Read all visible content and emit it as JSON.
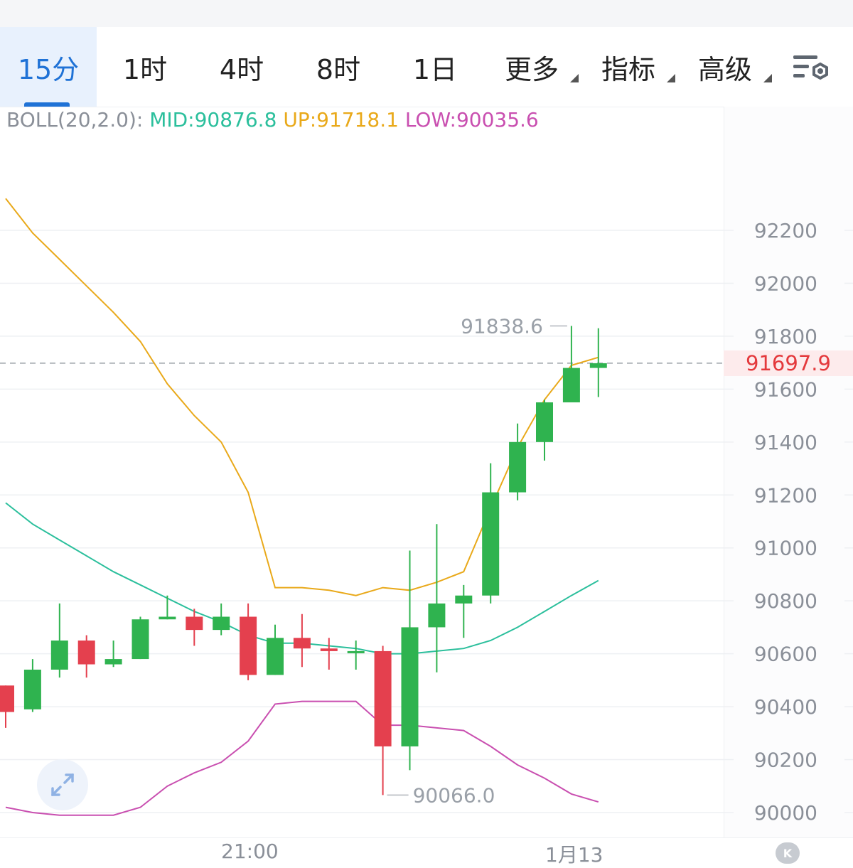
{
  "tabs": [
    {
      "label": "15分",
      "active": true
    },
    {
      "label": "1时"
    },
    {
      "label": "4时"
    },
    {
      "label": "8时"
    },
    {
      "label": "1日"
    },
    {
      "label": "更多",
      "dropdown": true
    },
    {
      "label": "指标",
      "dropdown": true
    },
    {
      "label": "高级",
      "dropdown": true
    }
  ],
  "settings_icon": "chart-settings-icon",
  "indicator": {
    "label": "BOLL(20,2.0):",
    "mid": "MID:90876.8",
    "up": "UP:91718.1",
    "low": "LOW:90035.6"
  },
  "current_price": "91697.9",
  "annotations": {
    "high": "91838.6",
    "low": "90066.0"
  },
  "x_ticks": [
    "21:00",
    "1月13"
  ],
  "back_label": "K",
  "colors": {
    "up": "#2fb34f",
    "down": "#e4404e",
    "mid": "#2bbf9c",
    "upper": "#e9a91a",
    "lower": "#c94fb0",
    "accent": "#1f72d6"
  },
  "chart_data": {
    "type": "candlestick",
    "interval": "15分",
    "y_ticks": [
      90000,
      90200,
      90400,
      90600,
      90800,
      91000,
      91200,
      91400,
      91600,
      91800,
      92000,
      92200
    ],
    "ylim": [
      89970,
      92450
    ],
    "candles": [
      {
        "open": 90480,
        "close": 90380,
        "high": 90480,
        "low": 90320
      },
      {
        "open": 90390,
        "close": 90540,
        "high": 90580,
        "low": 90380
      },
      {
        "open": 90540,
        "close": 90650,
        "high": 90790,
        "low": 90510
      },
      {
        "open": 90650,
        "close": 90560,
        "high": 90670,
        "low": 90510
      },
      {
        "open": 90560,
        "close": 90580,
        "high": 90650,
        "low": 90550
      },
      {
        "open": 90580,
        "close": 90730,
        "high": 90740,
        "low": 90580
      },
      {
        "open": 90730,
        "close": 90740,
        "high": 90820,
        "low": 90730
      },
      {
        "open": 90740,
        "close": 90690,
        "high": 90770,
        "low": 90630
      },
      {
        "open": 90690,
        "close": 90740,
        "high": 90790,
        "low": 90670
      },
      {
        "open": 90740,
        "close": 90520,
        "high": 90790,
        "low": 90500
      },
      {
        "open": 90520,
        "close": 90660,
        "high": 90710,
        "low": 90520
      },
      {
        "open": 90660,
        "close": 90620,
        "high": 90750,
        "low": 90550
      },
      {
        "open": 90620,
        "close": 90610,
        "high": 90660,
        "low": 90540
      },
      {
        "open": 90610,
        "close": 90610,
        "high": 90650,
        "low": 90540
      },
      {
        "open": 90610,
        "close": 90250,
        "high": 90630,
        "low": 90066
      },
      {
        "open": 90250,
        "close": 90700,
        "high": 90990,
        "low": 90160
      },
      {
        "open": 90700,
        "close": 90790,
        "high": 91090,
        "low": 90530
      },
      {
        "open": 90790,
        "close": 90820,
        "high": 90860,
        "low": 90660
      },
      {
        "open": 90820,
        "close": 91210,
        "high": 91320,
        "low": 90790
      },
      {
        "open": 91210,
        "close": 91400,
        "high": 91470,
        "low": 91180
      },
      {
        "open": 91400,
        "close": 91550,
        "high": 91560,
        "low": 91330
      },
      {
        "open": 91550,
        "close": 91680,
        "high": 91838.6,
        "low": 91560
      },
      {
        "open": 91680,
        "close": 91697.9,
        "high": 91830,
        "low": 91570
      }
    ],
    "boll_up": [
      92320,
      92190,
      92090,
      91990,
      91890,
      91780,
      91620,
      91500,
      91400,
      91210,
      90850,
      90850,
      90840,
      90820,
      90850,
      90840,
      90870,
      90910,
      91150,
      91380,
      91560,
      91690,
      91720
    ],
    "boll_mid": [
      91170,
      91090,
      91030,
      90970,
      90910,
      90860,
      90810,
      90760,
      90720,
      90670,
      90640,
      90640,
      90630,
      90620,
      90600,
      90600,
      90610,
      90620,
      90650,
      90700,
      90760,
      90820,
      90876.8
    ],
    "boll_low": [
      90020,
      90000,
      89990,
      89990,
      89990,
      90020,
      90100,
      90150,
      90190,
      90270,
      90410,
      90420,
      90420,
      90420,
      90330,
      90330,
      90320,
      90310,
      90250,
      90180,
      90130,
      90070,
      90040
    ],
    "last_price": 91697.9
  }
}
